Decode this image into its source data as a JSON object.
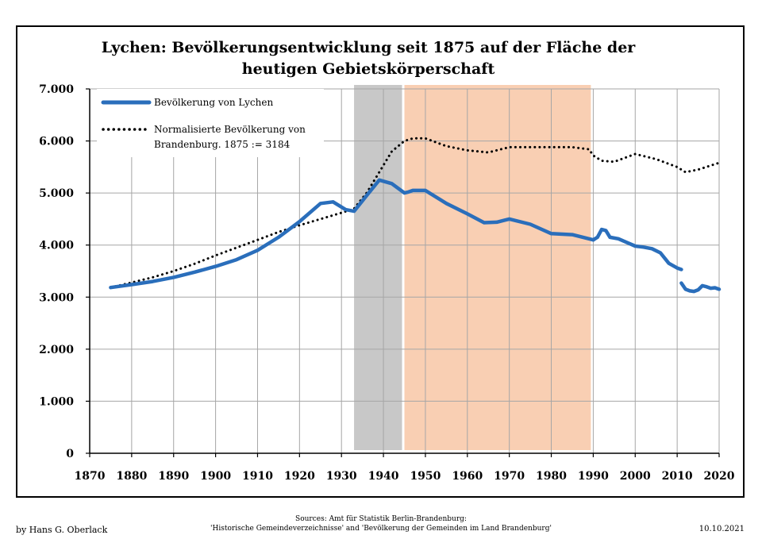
{
  "chart_data": {
    "type": "line",
    "title_line1": "Lychen: Bevölkerungsentwicklung seit 1875 auf der Fläche der",
    "title_line2": "heutigen Gebietskörperschaft",
    "xlabel": "",
    "ylabel": "",
    "xlim": [
      1870,
      2020
    ],
    "ylim": [
      0,
      7000
    ],
    "x_ticks": [
      1870,
      1880,
      1890,
      1900,
      1910,
      1920,
      1930,
      1940,
      1950,
      1960,
      1970,
      1980,
      1990,
      2000,
      2010,
      2020
    ],
    "x_tick_labels": [
      "1870",
      "1880",
      "1890",
      "1900",
      "1910",
      "1920",
      "1930",
      "1940",
      "1950",
      "1960",
      "1970",
      "1980",
      "1990",
      "2000",
      "2010",
      "2020"
    ],
    "y_ticks": [
      0,
      1000,
      2000,
      3000,
      4000,
      5000,
      6000,
      7000
    ],
    "y_tick_labels": [
      "0",
      "1.000",
      "2.000",
      "3.000",
      "4.000",
      "5.000",
      "6.000",
      "7.000"
    ],
    "grid": true,
    "legend_position": "top-left",
    "shaded_periods": [
      {
        "from": 1933,
        "to": 1945,
        "color": "#c8c8c8"
      },
      {
        "from": 1945,
        "to": 1990,
        "color": "#f9cfb3"
      }
    ],
    "series": [
      {
        "name": "Bevölkerung von Lychen",
        "color": "#2a6ebb",
        "style": "solid",
        "segments": [
          [
            [
              1875,
              3184
            ],
            [
              1880,
              3240
            ],
            [
              1885,
              3300
            ],
            [
              1890,
              3380
            ],
            [
              1895,
              3480
            ],
            [
              1900,
              3590
            ],
            [
              1905,
              3720
            ],
            [
              1910,
              3900
            ],
            [
              1915,
              4150
            ],
            [
              1920,
              4450
            ],
            [
              1925,
              4800
            ],
            [
              1928,
              4830
            ],
            [
              1931,
              4680
            ],
            [
              1933,
              4650
            ],
            [
              1936,
              4950
            ],
            [
              1939,
              5250
            ],
            [
              1942,
              5180
            ],
            [
              1945,
              5000
            ],
            [
              1946,
              5020
            ],
            [
              1947,
              5050
            ],
            [
              1950,
              5050
            ],
            [
              1955,
              4800
            ],
            [
              1960,
              4600
            ],
            [
              1964,
              4430
            ],
            [
              1967,
              4440
            ],
            [
              1970,
              4500
            ],
            [
              1975,
              4400
            ],
            [
              1980,
              4220
            ],
            [
              1985,
              4200
            ],
            [
              1990,
              4100
            ]
          ],
          [
            [
              1990,
              4100
            ],
            [
              1991,
              4150
            ],
            [
              1992,
              4300
            ],
            [
              1993,
              4280
            ],
            [
              1994,
              4150
            ],
            [
              1996,
              4120
            ],
            [
              1998,
              4050
            ],
            [
              2000,
              3980
            ],
            [
              2002,
              3960
            ],
            [
              2004,
              3930
            ],
            [
              2006,
              3850
            ],
            [
              2008,
              3650
            ],
            [
              2010,
              3560
            ],
            [
              2011,
              3530
            ]
          ],
          [
            [
              2011,
              3270
            ],
            [
              2012,
              3150
            ],
            [
              2013,
              3120
            ],
            [
              2014,
              3110
            ],
            [
              2015,
              3140
            ],
            [
              2016,
              3220
            ],
            [
              2017,
              3200
            ],
            [
              2018,
              3170
            ],
            [
              2019,
              3180
            ],
            [
              2020,
              3150
            ]
          ]
        ]
      },
      {
        "name": "Normalisierte Bevölkerung von Brandenburg. 1875 := 3184",
        "color": "#000000",
        "style": "dotted",
        "segments": [
          [
            [
              1875,
              3184
            ],
            [
              1880,
              3280
            ],
            [
              1885,
              3380
            ],
            [
              1890,
              3500
            ],
            [
              1895,
              3640
            ],
            [
              1900,
              3800
            ],
            [
              1905,
              3950
            ],
            [
              1910,
              4100
            ],
            [
              1915,
              4250
            ],
            [
              1920,
              4380
            ],
            [
              1925,
              4500
            ],
            [
              1930,
              4620
            ],
            [
              1933,
              4700
            ],
            [
              1936,
              5000
            ],
            [
              1939,
              5400
            ],
            [
              1942,
              5800
            ],
            [
              1945,
              6000
            ],
            [
              1947,
              6050
            ],
            [
              1950,
              6050
            ],
            [
              1955,
              5900
            ],
            [
              1960,
              5820
            ],
            [
              1965,
              5780
            ],
            [
              1970,
              5880
            ],
            [
              1975,
              5880
            ],
            [
              1980,
              5880
            ],
            [
              1985,
              5880
            ],
            [
              1989,
              5840
            ],
            [
              1990,
              5720
            ],
            [
              1992,
              5620
            ],
            [
              1995,
              5600
            ],
            [
              2000,
              5750
            ],
            [
              2005,
              5650
            ],
            [
              2010,
              5500
            ],
            [
              2012,
              5400
            ],
            [
              2015,
              5450
            ],
            [
              2020,
              5580
            ]
          ]
        ]
      }
    ]
  },
  "footer": {
    "author": "by Hans G. Oberlack",
    "sources_line1": "Sources: Amt für Statistik Berlin-Brandenburg:",
    "sources_line2": "'Historische Gemeindeverzeichnisse' and 'Bevölkerung der Gemeinden im Land Brandenburg'",
    "date": "10.10.2021"
  }
}
